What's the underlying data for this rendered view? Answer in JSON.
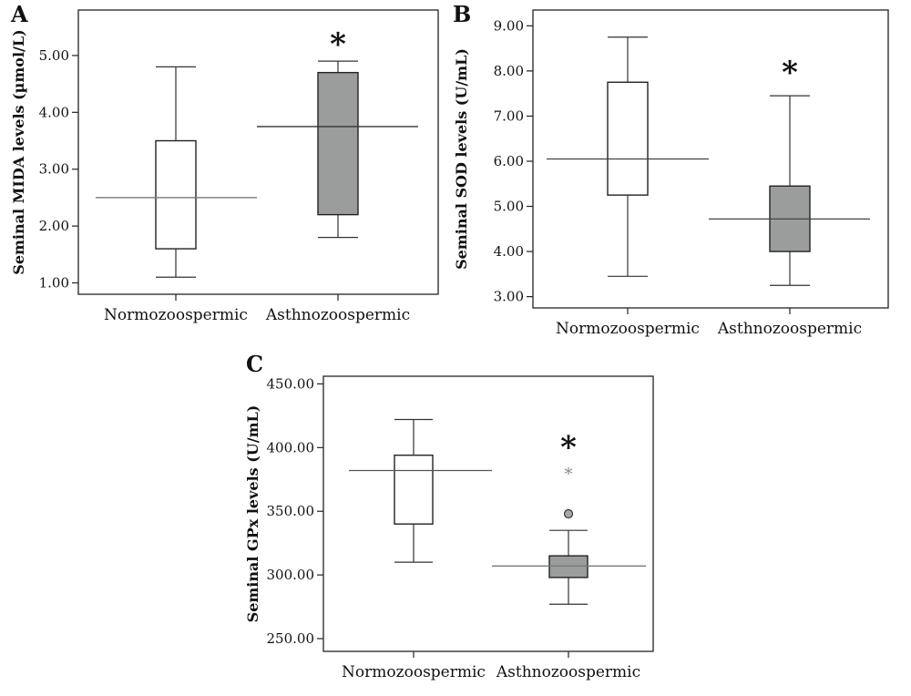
{
  "chart_data": [
    {
      "type": "box",
      "panel_label": "A",
      "ylabel": "Seminal MIDA levels (µmol/L)",
      "ylim": [
        0.8,
        5.8
      ],
      "yticks": [
        1.0,
        2.0,
        3.0,
        4.0,
        5.0
      ],
      "ytick_labels": [
        "1.00",
        "2.00",
        "3.00",
        "4.00",
        "5.00"
      ],
      "categories": [
        "Normozoospermic",
        "Asthnozoospermic"
      ],
      "fills": [
        "#ffffff",
        "#9a9d9c"
      ],
      "grand_median": 2.5,
      "boxes": [
        {
          "whisker_low": 1.1,
          "q1": 1.6,
          "median": 2.5,
          "q3": 3.5,
          "whisker_high": 4.8
        },
        {
          "whisker_low": 1.8,
          "q1": 2.2,
          "median": 3.75,
          "q3": 4.7,
          "whisker_high": 4.9
        }
      ],
      "significance": [
        {
          "category": "Asthnozoospermic",
          "y": 5.3,
          "text": "*"
        }
      ],
      "outliers": []
    },
    {
      "type": "box",
      "panel_label": "B",
      "ylabel": "Seminal SOD levels (U/mL)",
      "ylim": [
        2.75,
        9.35
      ],
      "yticks": [
        3.0,
        4.0,
        5.0,
        6.0,
        7.0,
        8.0,
        9.0
      ],
      "ytick_labels": [
        "3.00",
        "4.00",
        "5.00",
        "6.00",
        "7.00",
        "8.00",
        "9.00"
      ],
      "categories": [
        "Normozoospermic",
        "Asthnozoospermic"
      ],
      "fills": [
        "#ffffff",
        "#9a9d9c"
      ],
      "boxes": [
        {
          "whisker_low": 3.45,
          "q1": 5.25,
          "median": 6.05,
          "q3": 7.75,
          "whisker_high": 8.75
        },
        {
          "whisker_low": 3.25,
          "q1": 4.0,
          "median": 4.72,
          "q3": 5.45,
          "whisker_high": 7.45
        }
      ],
      "significance": [
        {
          "category": "Asthnozoospermic",
          "y": 8.1,
          "text": "*"
        }
      ],
      "outliers": []
    },
    {
      "type": "box",
      "panel_label": "C",
      "ylabel": "Seminal GPx levels (U/mL)",
      "ylim": [
        240,
        456
      ],
      "yticks": [
        250,
        300,
        350,
        400,
        450
      ],
      "ytick_labels": [
        "250.00",
        "300.00",
        "350.00",
        "400.00",
        "450.00"
      ],
      "categories": [
        "Normozoospermic",
        "Asthnozoospermic"
      ],
      "fills": [
        "#ffffff",
        "#9a9d9c"
      ],
      "boxes": [
        {
          "whisker_low": 310,
          "q1": 340,
          "median": 382,
          "q3": 394,
          "whisker_high": 422
        },
        {
          "whisker_low": 277,
          "q1": 298,
          "median": 307,
          "q3": 315,
          "whisker_high": 335
        }
      ],
      "significance": [
        {
          "category": "Asthnozoospermic",
          "y": 405,
          "text": "*"
        }
      ],
      "outliers": [
        {
          "category": "Asthnozoospermic",
          "y": 380,
          "kind": "extreme"
        },
        {
          "category": "Asthnozoospermic",
          "y": 348,
          "kind": "outlier"
        }
      ]
    }
  ]
}
